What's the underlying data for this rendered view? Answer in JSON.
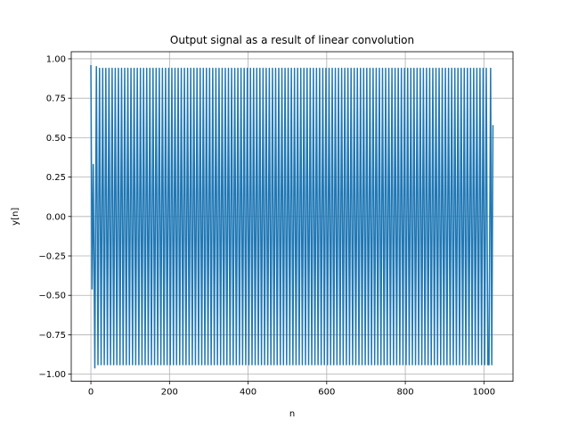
{
  "chart_data": {
    "type": "line",
    "title": "Output signal as a result of linear convolution",
    "xlabel": "n",
    "ylabel": "y[n]",
    "xlim": [
      -50,
      1074
    ],
    "ylim": [
      -1.045,
      1.045
    ],
    "xticks": [
      0,
      200,
      400,
      600,
      800,
      1000
    ],
    "yticks": [
      -1.0,
      -0.75,
      -0.5,
      -0.25,
      0.0,
      0.25,
      0.5,
      0.75,
      1.0
    ],
    "xtick_labels": [
      "0",
      "200",
      "400",
      "600",
      "800",
      "1000"
    ],
    "ytick_labels": [
      "−1.00",
      "−0.75",
      "−0.50",
      "−0.25",
      "0.00",
      "0.25",
      "0.50",
      "0.75",
      "1.00"
    ],
    "grid": true,
    "series_color": "#1f77b4",
    "series": [
      {
        "x": [
          0,
          3,
          6,
          10,
          14,
          1013,
          1017,
          1020,
          1023
        ],
        "y": [
          0.96,
          -0.46,
          0.33,
          -0.96,
          0.95,
          -0.94,
          0.94,
          -0.94,
          0.58
        ],
        "steady_state": {
          "amplitude": 0.94,
          "cycles_between_n": [
            14,
            1013
          ],
          "period_samples": 8
        }
      }
    ]
  }
}
